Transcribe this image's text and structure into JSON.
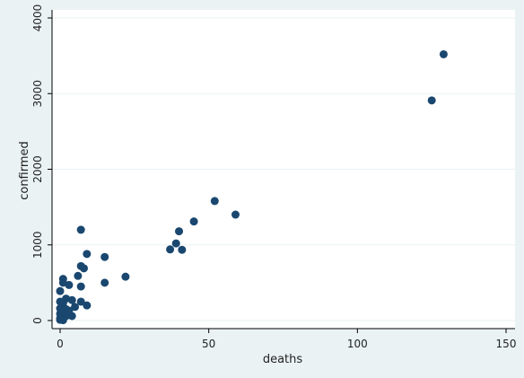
{
  "chart_data": {
    "type": "scatter",
    "title": "",
    "xlabel": "deaths",
    "ylabel": "confirmed",
    "xlim": [
      0,
      150
    ],
    "ylim": [
      0,
      4000
    ],
    "xticks": [
      0,
      50,
      100,
      150
    ],
    "yticks": [
      0,
      1000,
      2000,
      3000,
      4000
    ],
    "grid": true,
    "legend": "none",
    "marker_color": "#1a476f",
    "plot_background": "#ffffff",
    "figure_background": "#eaf2f3",
    "series": [
      {
        "points": [
          {
            "x": 129,
            "y": 3520
          },
          {
            "x": 125,
            "y": 2910
          },
          {
            "x": 52,
            "y": 1580
          },
          {
            "x": 59,
            "y": 1400
          },
          {
            "x": 45,
            "y": 1310
          },
          {
            "x": 40,
            "y": 1180
          },
          {
            "x": 39,
            "y": 1020
          },
          {
            "x": 37,
            "y": 940
          },
          {
            "x": 41,
            "y": 935
          },
          {
            "x": 7,
            "y": 1200
          },
          {
            "x": 9,
            "y": 880
          },
          {
            "x": 15,
            "y": 840
          },
          {
            "x": 7,
            "y": 720
          },
          {
            "x": 8,
            "y": 690
          },
          {
            "x": 6,
            "y": 590
          },
          {
            "x": 22,
            "y": 580
          },
          {
            "x": 15,
            "y": 500
          },
          {
            "x": 1,
            "y": 550
          },
          {
            "x": 1,
            "y": 500
          },
          {
            "x": 3,
            "y": 470
          },
          {
            "x": 7,
            "y": 450
          },
          {
            "x": 0,
            "y": 390
          },
          {
            "x": 2,
            "y": 290
          },
          {
            "x": 4,
            "y": 270
          },
          {
            "x": 7,
            "y": 250
          },
          {
            "x": 0,
            "y": 250
          },
          {
            "x": 1,
            "y": 230
          },
          {
            "x": 9,
            "y": 200
          },
          {
            "x": 5,
            "y": 180
          },
          {
            "x": 0,
            "y": 160
          },
          {
            "x": 2,
            "y": 150
          },
          {
            "x": 3,
            "y": 130
          },
          {
            "x": 1,
            "y": 110
          },
          {
            "x": 0,
            "y": 90
          },
          {
            "x": 4,
            "y": 60
          },
          {
            "x": 2,
            "y": 60
          },
          {
            "x": 1,
            "y": 40
          },
          {
            "x": 0,
            "y": 30
          },
          {
            "x": 0,
            "y": 10
          },
          {
            "x": 1,
            "y": 5
          }
        ]
      }
    ]
  }
}
